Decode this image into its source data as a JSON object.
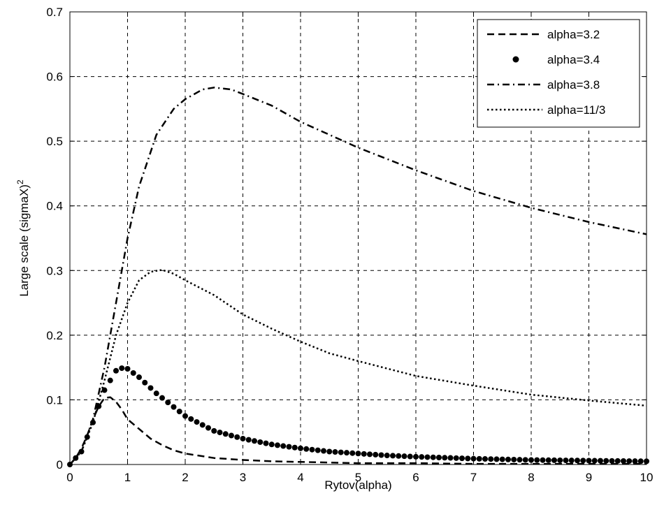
{
  "chart_data": {
    "type": "line",
    "title": "",
    "xlabel": "Rytov(alpha)",
    "ylabel": "Large scale (sigmaX)",
    "ylabel_superscript": "2",
    "xlim": [
      0,
      10
    ],
    "ylim": [
      0,
      0.7
    ],
    "xticks": [
      0,
      1,
      2,
      3,
      4,
      5,
      6,
      7,
      8,
      9,
      10
    ],
    "yticks": [
      0,
      0.1,
      0.2,
      0.3,
      0.4,
      0.5,
      0.6,
      0.7
    ],
    "grid": true,
    "legend_position": "top-right",
    "series": [
      {
        "name": "alpha=3.2",
        "style": "dashed",
        "color": "#000000",
        "x": [
          0,
          0.1,
          0.2,
          0.3,
          0.4,
          0.5,
          0.6,
          0.7,
          0.8,
          0.9,
          1.0,
          1.2,
          1.4,
          1.6,
          1.8,
          2.0,
          2.5,
          3.0,
          3.5,
          4.0,
          4.5,
          5.0,
          6.0,
          7.0,
          8.0,
          9.0,
          10.0
        ],
        "y": [
          0,
          0.01,
          0.025,
          0.045,
          0.07,
          0.09,
          0.103,
          0.104,
          0.097,
          0.085,
          0.07,
          0.055,
          0.04,
          0.03,
          0.022,
          0.017,
          0.01,
          0.007,
          0.005,
          0.004,
          0.003,
          0.002,
          0.002,
          0.001,
          0.001,
          0.001,
          0.001
        ]
      },
      {
        "name": "alpha=3.4",
        "style": "dots",
        "color": "#000000",
        "x": [
          0,
          0.2,
          0.4,
          0.6,
          0.8,
          0.9,
          1.0,
          1.2,
          1.5,
          2.0,
          2.5,
          3.0,
          3.5,
          4.0,
          4.5,
          5.0,
          5.5,
          6.0,
          7.0,
          8.0,
          9.0,
          10.0
        ],
        "y": [
          0,
          0.02,
          0.065,
          0.115,
          0.145,
          0.149,
          0.148,
          0.135,
          0.11,
          0.075,
          0.052,
          0.04,
          0.031,
          0.025,
          0.02,
          0.017,
          0.014,
          0.012,
          0.009,
          0.007,
          0.006,
          0.005
        ]
      },
      {
        "name": "alpha=3.8",
        "style": "dash-dot",
        "color": "#000000",
        "x": [
          0,
          0.2,
          0.4,
          0.6,
          0.8,
          1.0,
          1.2,
          1.5,
          1.8,
          2.0,
          2.3,
          2.5,
          2.8,
          3.0,
          3.5,
          4.0,
          4.5,
          5.0,
          6.0,
          7.0,
          8.0,
          9.0,
          10.0
        ],
        "y": [
          0,
          0.02,
          0.07,
          0.15,
          0.25,
          0.35,
          0.43,
          0.51,
          0.55,
          0.565,
          0.58,
          0.583,
          0.58,
          0.573,
          0.555,
          0.53,
          0.51,
          0.49,
          0.455,
          0.423,
          0.397,
          0.375,
          0.356
        ]
      },
      {
        "name": "alpha=11/3",
        "style": "dotted",
        "color": "#000000",
        "x": [
          0,
          0.2,
          0.4,
          0.6,
          0.8,
          1.0,
          1.2,
          1.4,
          1.6,
          1.8,
          2.0,
          2.5,
          3.0,
          3.5,
          4.0,
          4.5,
          5.0,
          6.0,
          7.0,
          8.0,
          9.0,
          10.0
        ],
        "y": [
          0,
          0.02,
          0.065,
          0.13,
          0.2,
          0.25,
          0.285,
          0.298,
          0.301,
          0.295,
          0.285,
          0.262,
          0.232,
          0.21,
          0.19,
          0.172,
          0.16,
          0.137,
          0.122,
          0.108,
          0.099,
          0.091
        ]
      }
    ]
  }
}
